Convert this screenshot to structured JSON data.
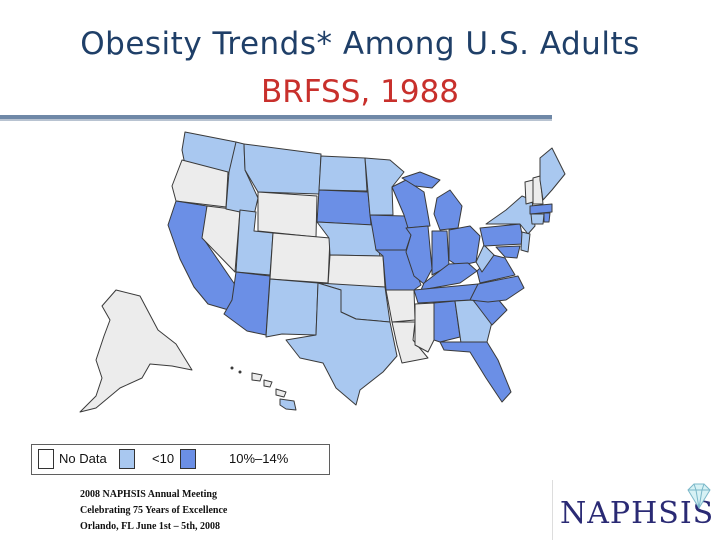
{
  "title": "Obesity Trends* Among U.S. Adults",
  "subtitle": "BRFSS, 1988",
  "legend": [
    {
      "label": "No Data",
      "color": "#ffffff"
    },
    {
      "label": "<10",
      "color": "#a9c8f0"
    },
    {
      "label": "10%–14%",
      "color": "#6b8fe6"
    }
  ],
  "footer": {
    "line1": "2008 NAPHSIS Annual Meeting",
    "line2": "Celebrating 75 Years of Excellence",
    "line3": "Orlando, FL     June 1st – 5th, 2008"
  },
  "logo": "NAPHSIS",
  "map_colors": {
    "no_data": "#ececec",
    "low": "#a9c8f0",
    "mid": "#6b8fe6",
    "border": "#3a3a3a"
  }
}
